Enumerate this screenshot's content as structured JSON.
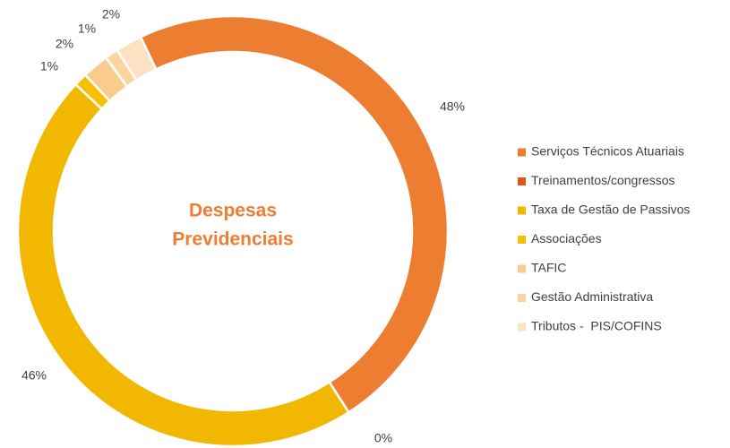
{
  "chart_data": {
    "type": "donut",
    "title": [
      "Despesas",
      "Previdenciais"
    ],
    "categories": [
      "Serviços Técnicos Atuariais",
      "Treinamentos/congressos",
      "Taxa de Gestão de Passivos",
      "Associações",
      "TAFIC",
      "Gestão Administrativa",
      "Tributos -  PIS/COFINS"
    ],
    "values": [
      48,
      0,
      46,
      1,
      2,
      1,
      2
    ],
    "value_labels": [
      "48%",
      "0%",
      "46%",
      "1%",
      "2%",
      "1%",
      "2%"
    ],
    "colors": [
      "#ED7D31",
      "#E0561A",
      "#F2B700",
      "#F5C000",
      "#F9CC8C",
      "#FAD59F",
      "#FCE1C2"
    ],
    "legend": "right"
  }
}
